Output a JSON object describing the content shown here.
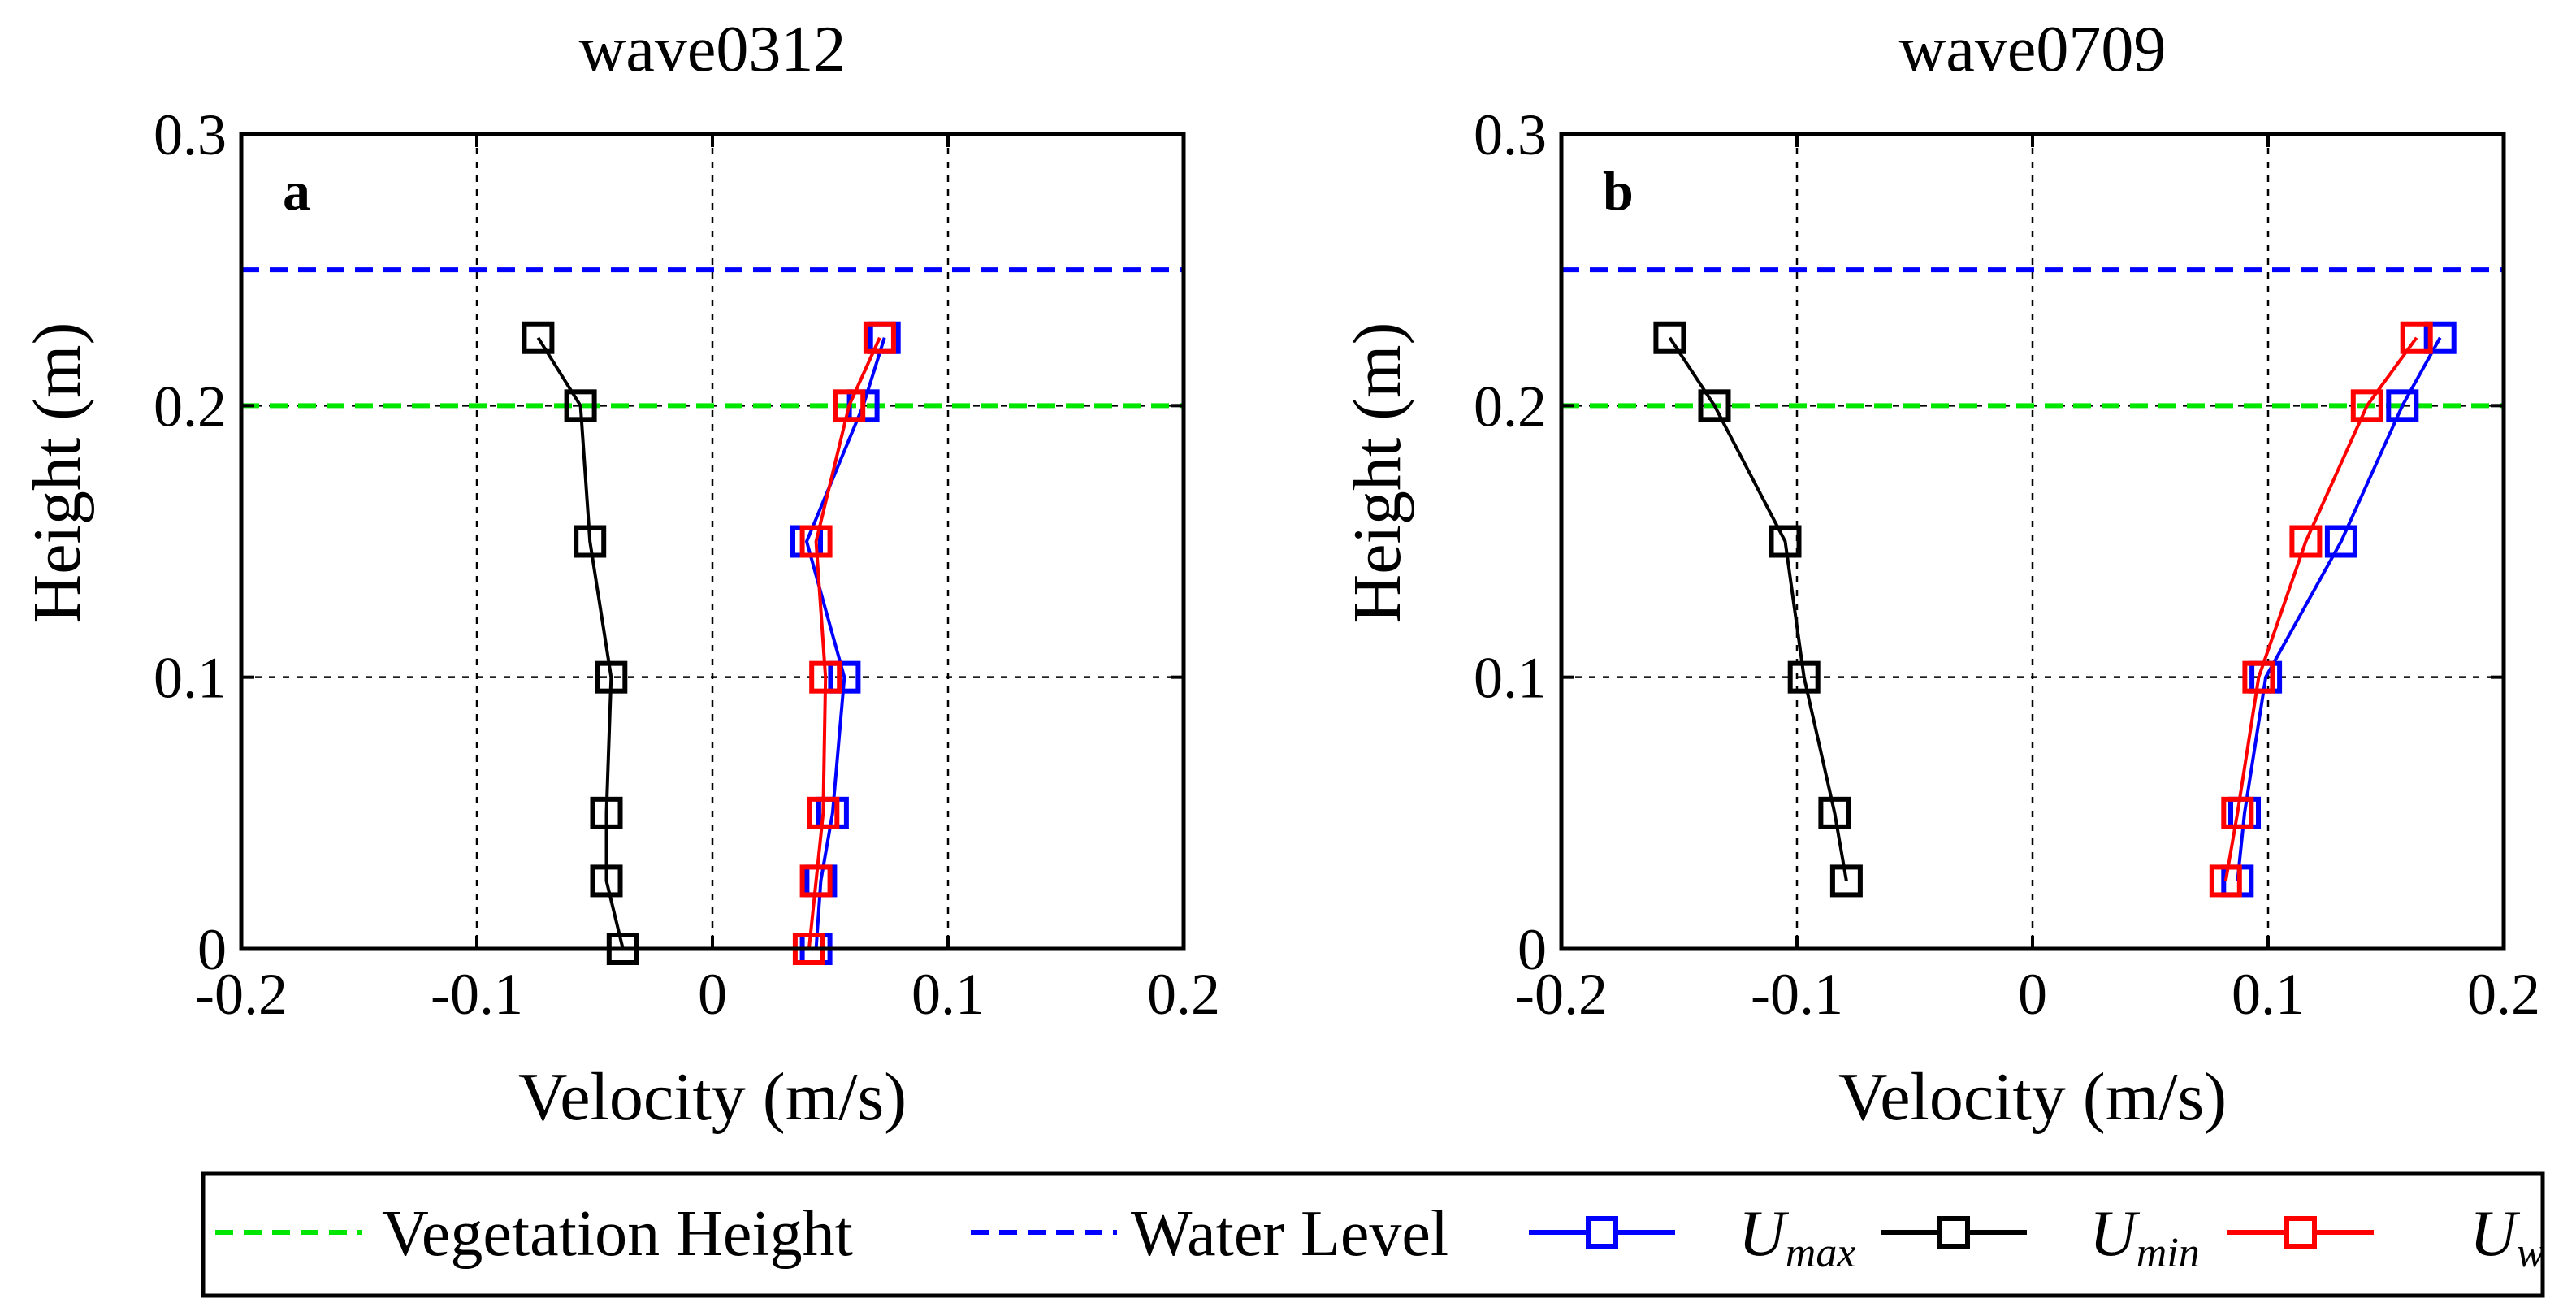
{
  "chart_data": [
    {
      "type": "line",
      "title": "wave0312",
      "panel_label": "a",
      "xlabel": "Velocity (m/s)",
      "ylabel": "Height (m)",
      "xlim": [
        -0.2,
        0.2
      ],
      "ylim": [
        0,
        0.3
      ],
      "xticks": [
        "-0.2",
        "-0.1",
        "0",
        "0.1",
        "0.2"
      ],
      "yticks": [
        "0",
        "0.1",
        "0.2",
        "0.3"
      ],
      "grid": true,
      "vegetation_height": 0.2,
      "water_level": 0.25,
      "series": [
        {
          "name": "U_max",
          "color": "#0000ff",
          "x": [
            0.073,
            0.064,
            0.04,
            0.056,
            0.051,
            0.046,
            0.044
          ],
          "y": [
            0.225,
            0.2,
            0.15,
            0.1,
            0.05,
            0.025,
            0.0
          ]
        },
        {
          "name": "U_min",
          "color": "#000000",
          "x": [
            -0.074,
            -0.056,
            -0.052,
            -0.043,
            -0.045,
            -0.045,
            -0.038
          ],
          "y": [
            0.225,
            0.2,
            0.15,
            0.1,
            0.05,
            0.025,
            0.0
          ]
        },
        {
          "name": "U_w",
          "color": "#ff0000",
          "x": [
            0.071,
            0.058,
            0.044,
            0.048,
            0.047,
            0.044,
            0.041
          ],
          "y": [
            0.225,
            0.2,
            0.15,
            0.1,
            0.05,
            0.025,
            0.0
          ]
        }
      ]
    },
    {
      "type": "line",
      "title": "wave0709",
      "panel_label": "b",
      "xlabel": "Velocity (m/s)",
      "ylabel": "Height (m)",
      "xlim": [
        -0.2,
        0.2
      ],
      "ylim": [
        0,
        0.3
      ],
      "xticks": [
        "-0.2",
        "-0.1",
        "0",
        "0.1",
        "0.2"
      ],
      "yticks": [
        "0",
        "0.1",
        "0.2",
        "0.3"
      ],
      "grid": true,
      "vegetation_height": 0.2,
      "water_level": 0.25,
      "series": [
        {
          "name": "U_max",
          "color": "#0000ff",
          "x": [
            0.173,
            0.157,
            0.131,
            0.099,
            0.09,
            0.087
          ],
          "y": [
            0.225,
            0.2,
            0.15,
            0.1,
            0.05,
            0.025
          ]
        },
        {
          "name": "U_min",
          "color": "#000000",
          "x": [
            -0.154,
            -0.135,
            -0.105,
            -0.097,
            -0.084,
            -0.079
          ],
          "y": [
            0.225,
            0.2,
            0.15,
            0.1,
            0.05,
            0.025
          ]
        },
        {
          "name": "U_w",
          "color": "#ff0000",
          "x": [
            0.163,
            0.142,
            0.116,
            0.096,
            0.087,
            0.082
          ],
          "y": [
            0.225,
            0.2,
            0.15,
            0.1,
            0.05,
            0.025
          ]
        }
      ]
    }
  ],
  "legend": {
    "position": "bottom",
    "items": [
      {
        "label": "Vegetation Height",
        "style": "dashed",
        "color": "#00e600"
      },
      {
        "label": "Water Level",
        "style": "dashed",
        "color": "#0000ff"
      },
      {
        "symbol": "U",
        "sub": "max",
        "style": "line-square",
        "color": "#0000ff"
      },
      {
        "symbol": "U",
        "sub": "min",
        "style": "line-square",
        "color": "#000000"
      },
      {
        "symbol": "U",
        "sub": "w",
        "style": "line-square",
        "color": "#ff0000"
      }
    ]
  }
}
